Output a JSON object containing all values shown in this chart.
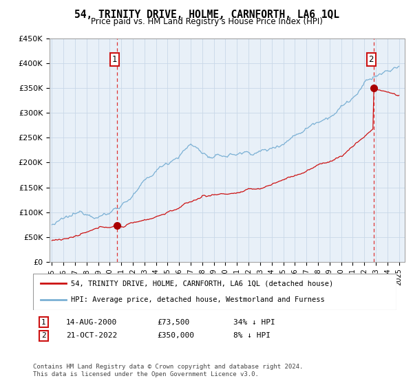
{
  "title": "54, TRINITY DRIVE, HOLME, CARNFORTH, LA6 1QL",
  "subtitle": "Price paid vs. HM Land Registry's House Price Index (HPI)",
  "plot_bg_color": "#e8f0f8",
  "ylim": [
    0,
    450000
  ],
  "yticks": [
    0,
    50000,
    100000,
    150000,
    200000,
    250000,
    300000,
    350000,
    400000,
    450000
  ],
  "ytick_labels": [
    "£0",
    "£50K",
    "£100K",
    "£150K",
    "£200K",
    "£250K",
    "£300K",
    "£350K",
    "£400K",
    "£450K"
  ],
  "xlim_start": 1994.8,
  "xlim_end": 2025.5,
  "sale1_x": 2000.62,
  "sale1_y": 73500,
  "sale2_x": 2022.8,
  "sale2_y": 350000,
  "hpi_line_color": "#7ab0d4",
  "price_line_color": "#cc1111",
  "sale_marker_color": "#aa0000",
  "sale_vline_color": "#dd3333",
  "grid_color": "#c8d8e8",
  "legend_label_red": "54, TRINITY DRIVE, HOLME, CARNFORTH, LA6 1QL (detached house)",
  "legend_label_blue": "HPI: Average price, detached house, Westmorland and Furness",
  "footer": "Contains HM Land Registry data © Crown copyright and database right 2024.\nThis data is licensed under the Open Government Licence v3.0."
}
